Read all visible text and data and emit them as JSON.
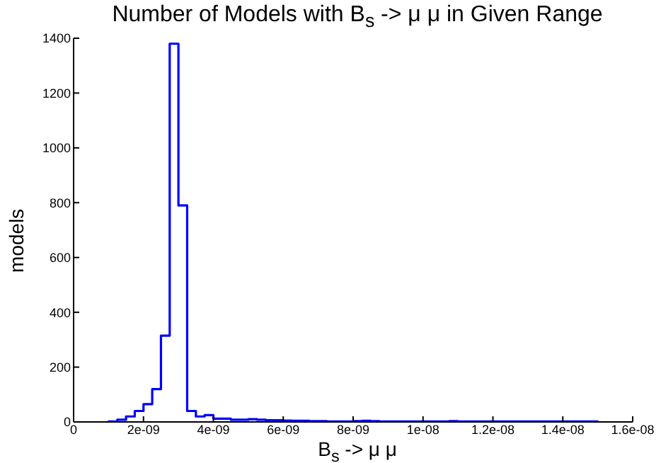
{
  "chart_data": {
    "type": "histogram",
    "title": "Number of Models with B$_{s}$ -> μ μ in Given Range",
    "xlabel": "B$_{s}$ -> μ μ",
    "ylabel": "models",
    "color": "#0000ff",
    "bins": [
      1e-09,
      1.25e-09,
      1.5e-09,
      1.75e-09,
      2e-09,
      2.25e-09,
      2.5e-09,
      2.75e-09,
      3e-09,
      3.25e-09,
      3.5e-09,
      3.75e-09,
      4e-09,
      4.25e-09,
      4.5e-09,
      4.75e-09,
      5e-09,
      5.25e-09,
      5.5e-09,
      5.75e-09,
      6e-09,
      6.25e-09,
      6.5e-09,
      6.75e-09,
      7e-09,
      7.25e-09,
      7.5e-09,
      7.75e-09,
      8e-09,
      8.25e-09,
      8.5e-09,
      8.75e-09,
      9e-09,
      9.25e-09,
      9.5e-09,
      9.75e-09,
      1e-08,
      1.025e-08,
      1.05e-08,
      1.075e-08,
      1.1e-08,
      1.125e-08,
      1.15e-08,
      1.175e-08,
      1.2e-08,
      1.225e-08,
      1.25e-08,
      1.275e-08,
      1.3e-08,
      1.325e-08,
      1.35e-08,
      1.375e-08,
      1.4e-08,
      1.425e-08,
      1.45e-08,
      1.475e-08,
      1.5e-08
    ],
    "values": [
      2,
      8,
      20,
      40,
      65,
      120,
      315,
      1380,
      790,
      40,
      20,
      25,
      12,
      12,
      8,
      8,
      10,
      8,
      6,
      6,
      5,
      4,
      4,
      3,
      3,
      2,
      2,
      2,
      3,
      4,
      3,
      2,
      2,
      2,
      2,
      2,
      2,
      2,
      2,
      3,
      2,
      2,
      2,
      2,
      2,
      2,
      2,
      2,
      2,
      2,
      2,
      2,
      2,
      2,
      2,
      2
    ],
    "xlim": [
      0,
      1.6e-08
    ],
    "xticks": [
      0,
      {
        "value": 2e-09,
        "label": "2e-09"
      },
      {
        "value": 4e-09,
        "label": "4e-09"
      },
      {
        "value": 6e-09,
        "label": "6e-09"
      },
      {
        "value": 8e-09,
        "label": "8e-09"
      },
      {
        "value": 1e-08,
        "label": "1e-08"
      },
      {
        "value": 1.2e-08,
        "label": "1.2e-08"
      },
      {
        "value": 1.4e-08,
        "label": "1.4e-08"
      },
      {
        "value": 1.6e-08,
        "label": "1.6e-08"
      }
    ],
    "ylim": [
      0,
      1400
    ],
    "yticks": [
      0,
      200,
      400,
      600,
      800,
      1000,
      1200,
      1400
    ]
  }
}
